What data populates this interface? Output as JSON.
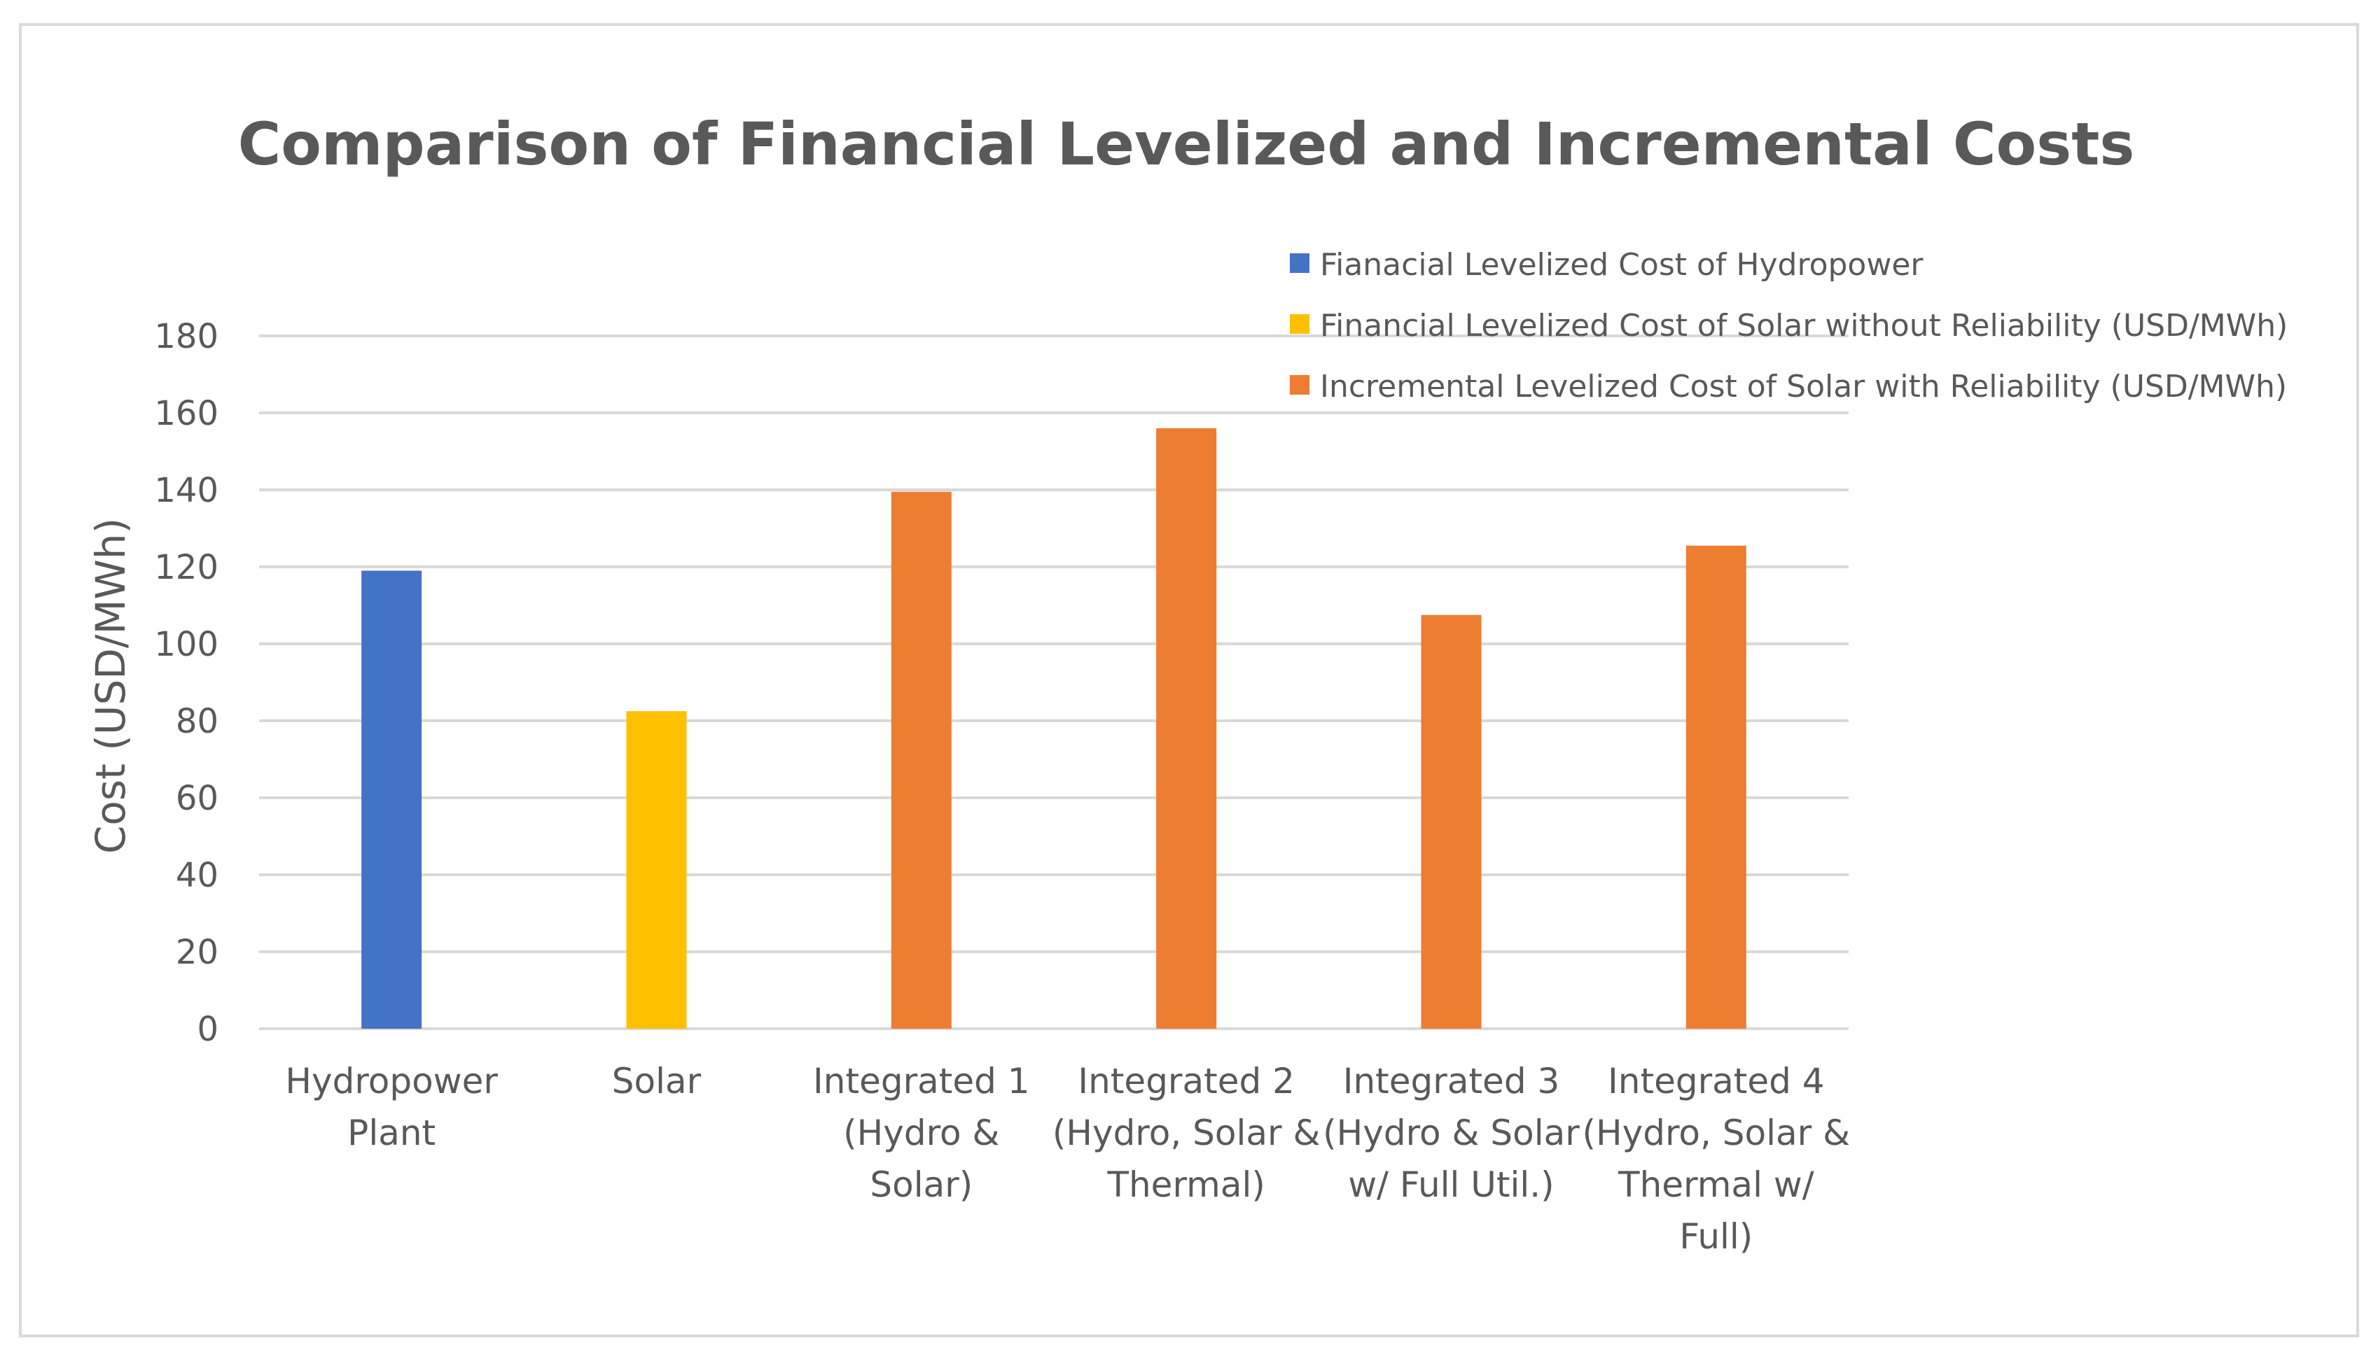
{
  "chart_data": {
    "type": "bar",
    "title": "Comparison of Financial Levelized and Incremental Costs",
    "xlabel": "",
    "ylabel": "Cost (USD/MWh)",
    "ylim": [
      0,
      180
    ],
    "yticks": [
      0,
      20,
      40,
      60,
      80,
      100,
      120,
      140,
      160,
      180
    ],
    "grid": true,
    "legend_position": "top-right",
    "categories": [
      [
        "Hydropower",
        "Plant"
      ],
      [
        "Solar"
      ],
      [
        "Integrated 1",
        "(Hydro &",
        "Solar)"
      ],
      [
        "Integrated 2",
        "(Hydro, Solar &",
        "Thermal)"
      ],
      [
        "Integrated 3",
        "(Hydro & Solar",
        "w/ Full Util.)"
      ],
      [
        "Integrated 4",
        "(Hydro, Solar &",
        "Thermal w/",
        "Full)"
      ]
    ],
    "series": [
      {
        "name": "Fianacial Levelized Cost of Hydropower",
        "color": "#4472c4",
        "values": [
          119,
          null,
          null,
          null,
          null,
          null
        ]
      },
      {
        "name": "Financial Levelized Cost of Solar without Reliability (USD/MWh)",
        "color": "#ffc000",
        "values": [
          null,
          82.5,
          null,
          null,
          null,
          null
        ]
      },
      {
        "name": "Incremental Levelized Cost of Solar with Reliability (USD/MWh)",
        "color": "#ed7d31",
        "values": [
          null,
          null,
          139.5,
          156,
          107.5,
          125.5
        ]
      }
    ]
  }
}
